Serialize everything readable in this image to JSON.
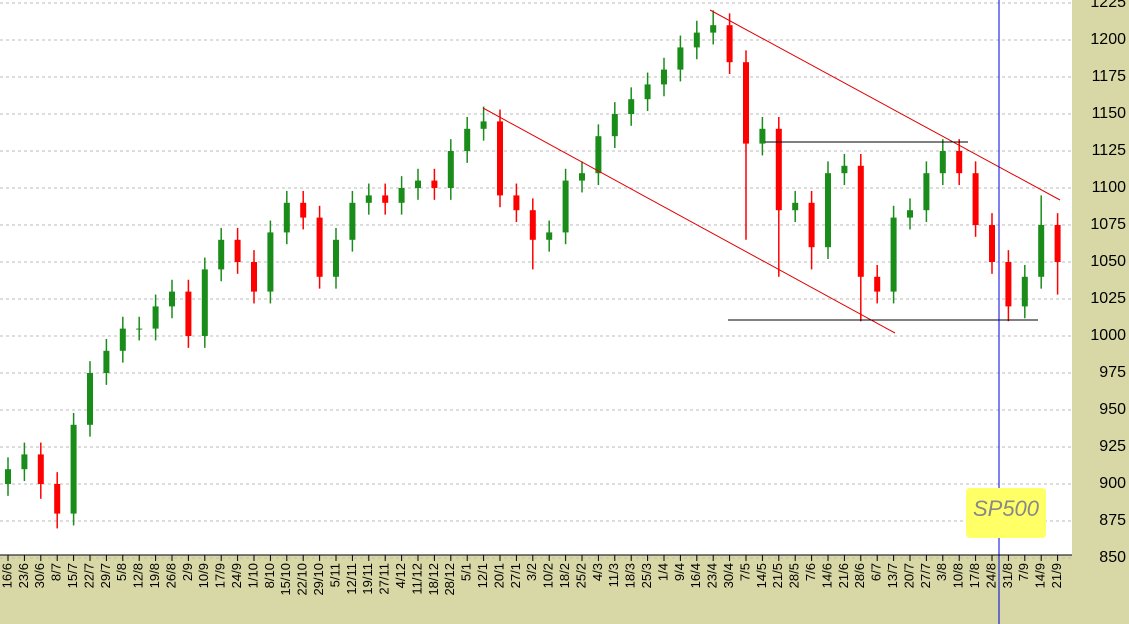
{
  "chart_data": {
    "type": "candlestick",
    "name": "SP500",
    "up_color": "#1a8c1a",
    "down_color": "#ff0000",
    "categories": [
      "16/6",
      "23/6",
      "30/6",
      "8/7",
      "15/7",
      "22/7",
      "29/7",
      "5/8",
      "12/8",
      "19/8",
      "26/8",
      "2/9",
      "10/9",
      "17/9",
      "24/9",
      "1/10",
      "8/10",
      "15/10",
      "22/10",
      "29/10",
      "5/11",
      "12/11",
      "19/11",
      "27/11",
      "4/12",
      "11/12",
      "18/12",
      "28/12",
      "5/1",
      "12/1",
      "20/1",
      "27/1",
      "3/2",
      "10/2",
      "18/2",
      "25/2",
      "4/3",
      "11/3",
      "18/3",
      "25/3",
      "1/4",
      "9/4",
      "16/4",
      "23/4",
      "30/4",
      "7/5",
      "14/5",
      "21/5",
      "28/5",
      "7/6",
      "14/6",
      "21/6",
      "28/6",
      "6/7",
      "13/7",
      "20/7",
      "27/7",
      "3/8",
      "10/8",
      "17/8",
      "24/8",
      "31/8",
      "7/9",
      "14/9",
      "21/9"
    ],
    "open": [
      900,
      910,
      920,
      900,
      880,
      940,
      975,
      990,
      1005,
      1005,
      1020,
      1030,
      1000,
      1045,
      1065,
      1050,
      1030,
      1070,
      1090,
      1080,
      1040,
      1065,
      1090,
      1095,
      1090,
      1100,
      1105,
      1100,
      1125,
      1140,
      1145,
      1095,
      1085,
      1065,
      1070,
      1105,
      1110,
      1135,
      1150,
      1160,
      1170,
      1180,
      1195,
      1205,
      1210,
      1185,
      1130,
      1140,
      1085,
      1090,
      1060,
      1110,
      1115,
      1040,
      1030,
      1080,
      1085,
      1110,
      1125,
      1110,
      1075,
      1050,
      1020,
      1040,
      1075
    ],
    "high": [
      918,
      928,
      928,
      908,
      948,
      983,
      998,
      1013,
      1013,
      1028,
      1038,
      1038,
      1053,
      1073,
      1073,
      1058,
      1078,
      1098,
      1098,
      1088,
      1073,
      1098,
      1103,
      1103,
      1108,
      1113,
      1113,
      1133,
      1148,
      1155,
      1153,
      1103,
      1093,
      1078,
      1113,
      1118,
      1143,
      1158,
      1168,
      1178,
      1188,
      1203,
      1213,
      1220,
      1218,
      1193,
      1148,
      1148,
      1098,
      1098,
      1118,
      1123,
      1123,
      1048,
      1088,
      1093,
      1118,
      1133,
      1133,
      1118,
      1083,
      1058,
      1048,
      1095,
      1083
    ],
    "low": [
      892,
      902,
      890,
      870,
      872,
      932,
      967,
      982,
      997,
      997,
      1012,
      992,
      992,
      1037,
      1042,
      1022,
      1022,
      1062,
      1072,
      1032,
      1032,
      1057,
      1082,
      1082,
      1082,
      1092,
      1092,
      1092,
      1117,
      1132,
      1087,
      1077,
      1045,
      1057,
      1062,
      1097,
      1102,
      1127,
      1142,
      1152,
      1162,
      1172,
      1187,
      1197,
      1177,
      1065,
      1122,
      1040,
      1077,
      1045,
      1052,
      1102,
      1010,
      1022,
      1022,
      1072,
      1077,
      1102,
      1102,
      1067,
      1042,
      1010,
      1012,
      1032,
      1028
    ],
    "close": [
      910,
      920,
      900,
      880,
      940,
      975,
      990,
      1005,
      1005,
      1020,
      1030,
      1000,
      1045,
      1065,
      1050,
      1030,
      1070,
      1090,
      1080,
      1040,
      1065,
      1090,
      1095,
      1090,
      1100,
      1105,
      1100,
      1125,
      1140,
      1145,
      1095,
      1085,
      1065,
      1070,
      1105,
      1110,
      1135,
      1150,
      1160,
      1170,
      1180,
      1195,
      1205,
      1210,
      1185,
      1130,
      1140,
      1085,
      1090,
      1060,
      1110,
      1115,
      1040,
      1030,
      1080,
      1085,
      1110,
      1125,
      1110,
      1075,
      1050,
      1020,
      1040,
      1075,
      1050
    ],
    "ylim": [
      850,
      1225
    ],
    "yticks": [
      850,
      875,
      900,
      925,
      950,
      975,
      1000,
      1025,
      1050,
      1075,
      1100,
      1125,
      1150,
      1175,
      1200,
      1225
    ],
    "grid": true
  }
}
